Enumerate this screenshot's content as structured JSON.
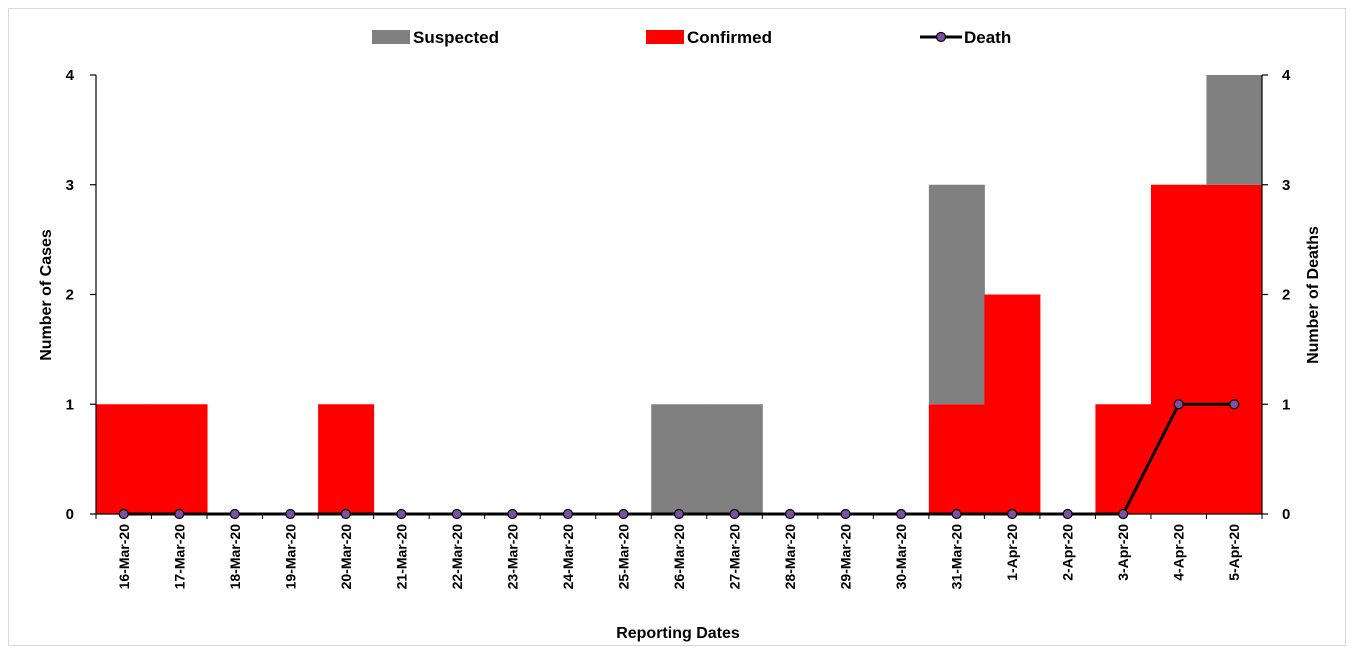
{
  "chart_data": {
    "type": "bar",
    "categories": [
      "16-Mar-20",
      "17-Mar-20",
      "18-Mar-20",
      "19-Mar-20",
      "20-Mar-20",
      "21-Mar-20",
      "22-Mar-20",
      "23-Mar-20",
      "24-Mar-20",
      "25-Mar-20",
      "26-Mar-20",
      "27-Mar-20",
      "28-Mar-20",
      "29-Mar-20",
      "30-Mar-20",
      "31-Mar-20",
      "1-Apr-20",
      "2-Apr-20",
      "3-Apr-20",
      "4-Apr-20",
      "5-Apr-20"
    ],
    "series": [
      {
        "name": "Confirmed",
        "kind": "bar",
        "stack": "cases",
        "color": "#ff0000",
        "values": [
          1,
          1,
          0,
          0,
          1,
          0,
          0,
          0,
          0,
          0,
          0,
          0,
          0,
          0,
          0,
          1,
          2,
          0,
          1,
          3,
          3
        ]
      },
      {
        "name": "Suspected",
        "kind": "bar",
        "stack": "cases",
        "color": "#808080",
        "values": [
          0,
          0,
          0,
          0,
          0,
          0,
          0,
          0,
          0,
          0,
          1,
          1,
          0,
          0,
          0,
          2,
          0,
          0,
          0,
          0,
          1
        ]
      },
      {
        "name": "Death",
        "kind": "line",
        "axis": "right",
        "color": "#000000",
        "marker_color": "#7f4fa6",
        "values": [
          0,
          0,
          0,
          0,
          0,
          0,
          0,
          0,
          0,
          0,
          0,
          0,
          0,
          0,
          0,
          0,
          0,
          0,
          0,
          1,
          1
        ]
      }
    ],
    "legend": [
      "Suspected",
      "Confirmed",
      "Death"
    ],
    "legend_position": "top-center",
    "xlabel": "Reporting Dates",
    "ylabel": "Number of Cases",
    "y2label": "Number of Deaths",
    "ylim": [
      0,
      4
    ],
    "y2lim": [
      0,
      4
    ],
    "yticks": [
      0,
      1,
      2,
      3,
      4
    ],
    "y2ticks": [
      0,
      1,
      2,
      3,
      4
    ],
    "grid": false
  }
}
